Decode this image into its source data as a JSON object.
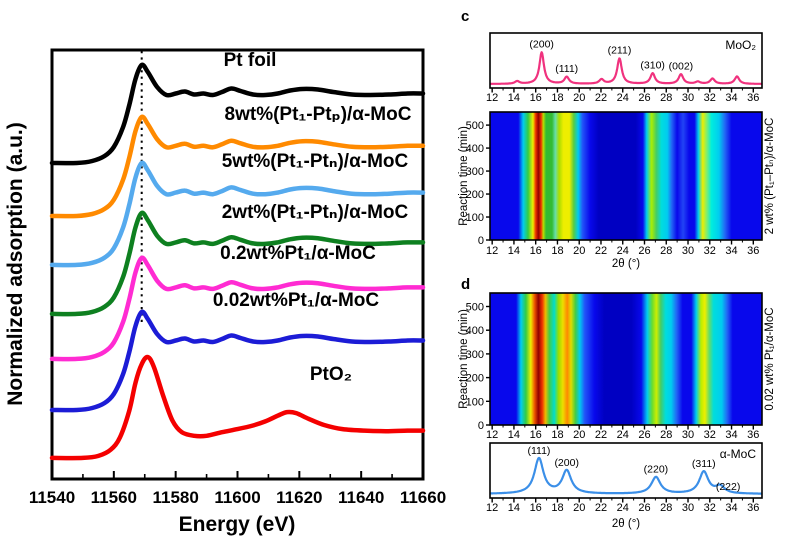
{
  "labels": {
    "panel_c": "c",
    "panel_d": "d"
  },
  "chart_data": [
    {
      "id": "xanes",
      "type": "line",
      "xlabel": "Energy (eV)",
      "ylabel": "Normalized adsorption (a.u.)",
      "xlim": [
        11540,
        11660
      ],
      "xticks": [
        "11540",
        "11560",
        "11580",
        "11600",
        "11620",
        "11640",
        "11660"
      ],
      "annotation_line_eV": 11569,
      "series": [
        {
          "label": "Pt foil",
          "color": "#000000",
          "profile": "metal"
        },
        {
          "label": "8wt%(Pt₁-Ptₚ)/α-MoC",
          "color": "#FF8A00",
          "profile": "metal"
        },
        {
          "label": "5wt%(Pt₁-Ptₙ)/α-MoC",
          "color": "#55AAEE",
          "profile": "metal"
        },
        {
          "label": "2wt%(Pt₁-Ptₙ)/α-MoC",
          "color": "#0E8020",
          "profile": "metal"
        },
        {
          "label": "0.2wt%Pt₁/α-MoC",
          "color": "#FF2BD2",
          "profile": "metal"
        },
        {
          "label": "0.02wt%Pt₁/α-MoC",
          "color": "#1C1CD6",
          "profile": "metal"
        },
        {
          "label": "PtO₂",
          "color": "#F40000",
          "profile": "oxide"
        }
      ],
      "profiles": {
        "metal": [
          [
            11540,
            0.02
          ],
          [
            11548,
            0.02
          ],
          [
            11553,
            0.04
          ],
          [
            11557,
            0.09
          ],
          [
            11560,
            0.18
          ],
          [
            11563,
            0.38
          ],
          [
            11565,
            0.6
          ],
          [
            11567,
            0.86
          ],
          [
            11569,
            1.0
          ],
          [
            11571,
            0.93
          ],
          [
            11574,
            0.78
          ],
          [
            11577,
            0.7
          ],
          [
            11580,
            0.715
          ],
          [
            11583,
            0.735
          ],
          [
            11586,
            0.705
          ],
          [
            11589,
            0.715
          ],
          [
            11592,
            0.7
          ],
          [
            11595,
            0.73
          ],
          [
            11598,
            0.765
          ],
          [
            11601,
            0.74
          ],
          [
            11605,
            0.705
          ],
          [
            11609,
            0.7
          ],
          [
            11613,
            0.715
          ],
          [
            11617,
            0.745
          ],
          [
            11621,
            0.76
          ],
          [
            11626,
            0.755
          ],
          [
            11631,
            0.73
          ],
          [
            11637,
            0.705
          ],
          [
            11643,
            0.7
          ],
          [
            11649,
            0.705
          ],
          [
            11655,
            0.715
          ],
          [
            11660,
            0.715
          ]
        ],
        "oxide": [
          [
            11540,
            0.02
          ],
          [
            11550,
            0.02
          ],
          [
            11555,
            0.04
          ],
          [
            11559,
            0.1
          ],
          [
            11562,
            0.22
          ],
          [
            11565,
            0.48
          ],
          [
            11567,
            0.75
          ],
          [
            11569,
            0.93
          ],
          [
            11571,
            1.0
          ],
          [
            11573,
            0.9
          ],
          [
            11576,
            0.62
          ],
          [
            11579,
            0.38
          ],
          [
            11582,
            0.27
          ],
          [
            11586,
            0.235
          ],
          [
            11590,
            0.235
          ],
          [
            11595,
            0.27
          ],
          [
            11600,
            0.3
          ],
          [
            11605,
            0.335
          ],
          [
            11609,
            0.375
          ],
          [
            11613,
            0.43
          ],
          [
            11616,
            0.465
          ],
          [
            11619,
            0.455
          ],
          [
            11623,
            0.4
          ],
          [
            11628,
            0.34
          ],
          [
            11634,
            0.3
          ],
          [
            11641,
            0.285
          ],
          [
            11648,
            0.28
          ],
          [
            11655,
            0.285
          ],
          [
            11660,
            0.285
          ]
        ]
      }
    },
    {
      "id": "xrd_moo2",
      "type": "line",
      "title": "MoO₂",
      "color": "#F0327E",
      "xlim": [
        12,
        36
      ],
      "xticks": [
        "12",
        "14",
        "16",
        "18",
        "20",
        "22",
        "24",
        "26",
        "28",
        "30",
        "32",
        "34",
        "36"
      ],
      "peak_width": 0.25,
      "peaks": [
        {
          "two_theta": 14.3,
          "height": 0.06
        },
        {
          "two_theta": 16.55,
          "height": 0.72,
          "label": "(200)"
        },
        {
          "two_theta": 18.85,
          "height": 0.16,
          "label": "(111)"
        },
        {
          "two_theta": 22.05,
          "height": 0.1
        },
        {
          "two_theta": 23.7,
          "height": 0.58,
          "label": "(211)"
        },
        {
          "two_theta": 26.75,
          "height": 0.24,
          "label": "(310)"
        },
        {
          "two_theta": 29.35,
          "height": 0.22,
          "label": "(002)"
        },
        {
          "two_theta": 30.9,
          "height": 0.05
        },
        {
          "two_theta": 32.25,
          "height": 0.12
        },
        {
          "two_theta": 34.5,
          "height": 0.17
        }
      ]
    },
    {
      "id": "heatmap_2wt",
      "type": "heatmap",
      "xlabel": "2θ (°)",
      "ylabel": "Reaction time (min)",
      "right_label": "2 wt% (Pt₁–Ptₙ)/α-MoC",
      "xlim": [
        12,
        36
      ],
      "xticks": [
        "12",
        "14",
        "16",
        "18",
        "20",
        "22",
        "24",
        "26",
        "28",
        "30",
        "32",
        "34",
        "36"
      ],
      "ylim": [
        0,
        557
      ],
      "yticks": [
        "0",
        "100",
        "200",
        "300",
        "400",
        "500"
      ],
      "bands": [
        [
          11.8,
          "#0808EC"
        ],
        [
          14.4,
          "#0808EC"
        ],
        [
          14.85,
          "#00CCF0"
        ],
        [
          15.3,
          "#33CC44"
        ],
        [
          15.75,
          "#EEEE00"
        ],
        [
          16.0,
          "#EE3300"
        ],
        [
          16.25,
          "#900000"
        ],
        [
          16.5,
          "#EE3300"
        ],
        [
          16.7,
          "#BBDD00"
        ],
        [
          16.95,
          "#33BB33"
        ],
        [
          17.5,
          "#33BB33"
        ],
        [
          17.8,
          "#66DDAA"
        ],
        [
          18.15,
          "#AADD00"
        ],
        [
          18.55,
          "#EEEE00"
        ],
        [
          19.1,
          "#EEEE00"
        ],
        [
          19.5,
          "#55CC44"
        ],
        [
          19.9,
          "#00CCEE"
        ],
        [
          20.3,
          "#2255F8"
        ],
        [
          21.0,
          "#0808EC"
        ],
        [
          21.8,
          "#0000C2"
        ],
        [
          25.2,
          "#0000C2"
        ],
        [
          25.85,
          "#0808EC"
        ],
        [
          26.2,
          "#00CCF0"
        ],
        [
          26.65,
          "#AAEE00"
        ],
        [
          27.1,
          "#44CC66"
        ],
        [
          27.55,
          "#00DDDD"
        ],
        [
          28.1,
          "#00CCF0"
        ],
        [
          28.5,
          "#2266F5"
        ],
        [
          29.0,
          "#0808EC"
        ],
        [
          29.55,
          "#2244F5"
        ],
        [
          30.1,
          "#0808EC"
        ],
        [
          30.6,
          "#0808EC"
        ],
        [
          30.95,
          "#00CCF0"
        ],
        [
          31.35,
          "#EEEE00"
        ],
        [
          31.75,
          "#77EE77"
        ],
        [
          32.15,
          "#00EEDD"
        ],
        [
          32.85,
          "#00CCF0"
        ],
        [
          33.4,
          "#2266F5"
        ],
        [
          34.0,
          "#0808EC"
        ],
        [
          36.8,
          "#0808EC"
        ]
      ]
    },
    {
      "id": "heatmap_002wt",
      "type": "heatmap",
      "xlabel": "2θ (°)",
      "ylabel": "Reaction time (min)",
      "right_label": "0.02 wt% Pt₁/α-MoC",
      "xlim": [
        12,
        36
      ],
      "xticks": [
        "12",
        "14",
        "16",
        "18",
        "20",
        "22",
        "24",
        "26",
        "28",
        "30",
        "32",
        "34",
        "36"
      ],
      "ylim": [
        0,
        557
      ],
      "yticks": [
        "0",
        "100",
        "200",
        "300",
        "400",
        "500"
      ],
      "bands": [
        [
          11.8,
          "#0808EC"
        ],
        [
          14.2,
          "#0808EC"
        ],
        [
          14.65,
          "#00CCF0"
        ],
        [
          15.1,
          "#33CC44"
        ],
        [
          15.55,
          "#EEEE00"
        ],
        [
          15.9,
          "#EE5500"
        ],
        [
          16.25,
          "#8F0000"
        ],
        [
          16.6,
          "#EE3300"
        ],
        [
          16.9,
          "#EEBB00"
        ],
        [
          17.25,
          "#44CC44"
        ],
        [
          17.7,
          "#00DDCC"
        ],
        [
          18.1,
          "#99DD00"
        ],
        [
          18.5,
          "#EEDD00"
        ],
        [
          18.9,
          "#FF8800"
        ],
        [
          19.25,
          "#DDDD00"
        ],
        [
          19.65,
          "#44CC44"
        ],
        [
          20.05,
          "#00CCEE"
        ],
        [
          20.5,
          "#2255F8"
        ],
        [
          21.4,
          "#0808EC"
        ],
        [
          22.3,
          "#0000C2"
        ],
        [
          24.8,
          "#0000C2"
        ],
        [
          25.7,
          "#0808EC"
        ],
        [
          26.25,
          "#00CCF0"
        ],
        [
          26.7,
          "#66DD33"
        ],
        [
          27.1,
          "#CCEE00"
        ],
        [
          27.5,
          "#44CC66"
        ],
        [
          27.95,
          "#00DDDD"
        ],
        [
          28.45,
          "#00CCF0"
        ],
        [
          28.95,
          "#2266F5"
        ],
        [
          29.5,
          "#0808EC"
        ],
        [
          30.3,
          "#0808EC"
        ],
        [
          30.75,
          "#00CCF0"
        ],
        [
          31.2,
          "#BBEE00"
        ],
        [
          31.55,
          "#EEEE00"
        ],
        [
          31.95,
          "#66DD66"
        ],
        [
          32.35,
          "#00DDDD"
        ],
        [
          33.1,
          "#00CCF0"
        ],
        [
          33.6,
          "#2266F5"
        ],
        [
          34.1,
          "#0808EC"
        ],
        [
          36.8,
          "#0808EC"
        ]
      ]
    },
    {
      "id": "xrd_amoc",
      "type": "line",
      "title": "α-MoC",
      "color": "#3B8FE8",
      "xlabel": "2θ (°)",
      "xlim": [
        12,
        36
      ],
      "xticks": [
        "12",
        "14",
        "16",
        "18",
        "20",
        "22",
        "24",
        "26",
        "28",
        "30",
        "32",
        "34",
        "36"
      ],
      "peak_width": 0.5,
      "peaks": [
        {
          "two_theta": 16.3,
          "height": 0.8,
          "label": "(111)"
        },
        {
          "two_theta": 18.85,
          "height": 0.52,
          "label": "(200)"
        },
        {
          "two_theta": 27.05,
          "height": 0.38,
          "label": "(220)"
        },
        {
          "two_theta": 31.45,
          "height": 0.5,
          "label": "(311)"
        },
        {
          "two_theta": 32.95,
          "height": 0.16,
          "label": "(222)",
          "label_dx": 8,
          "label_dy": 8
        }
      ]
    }
  ]
}
